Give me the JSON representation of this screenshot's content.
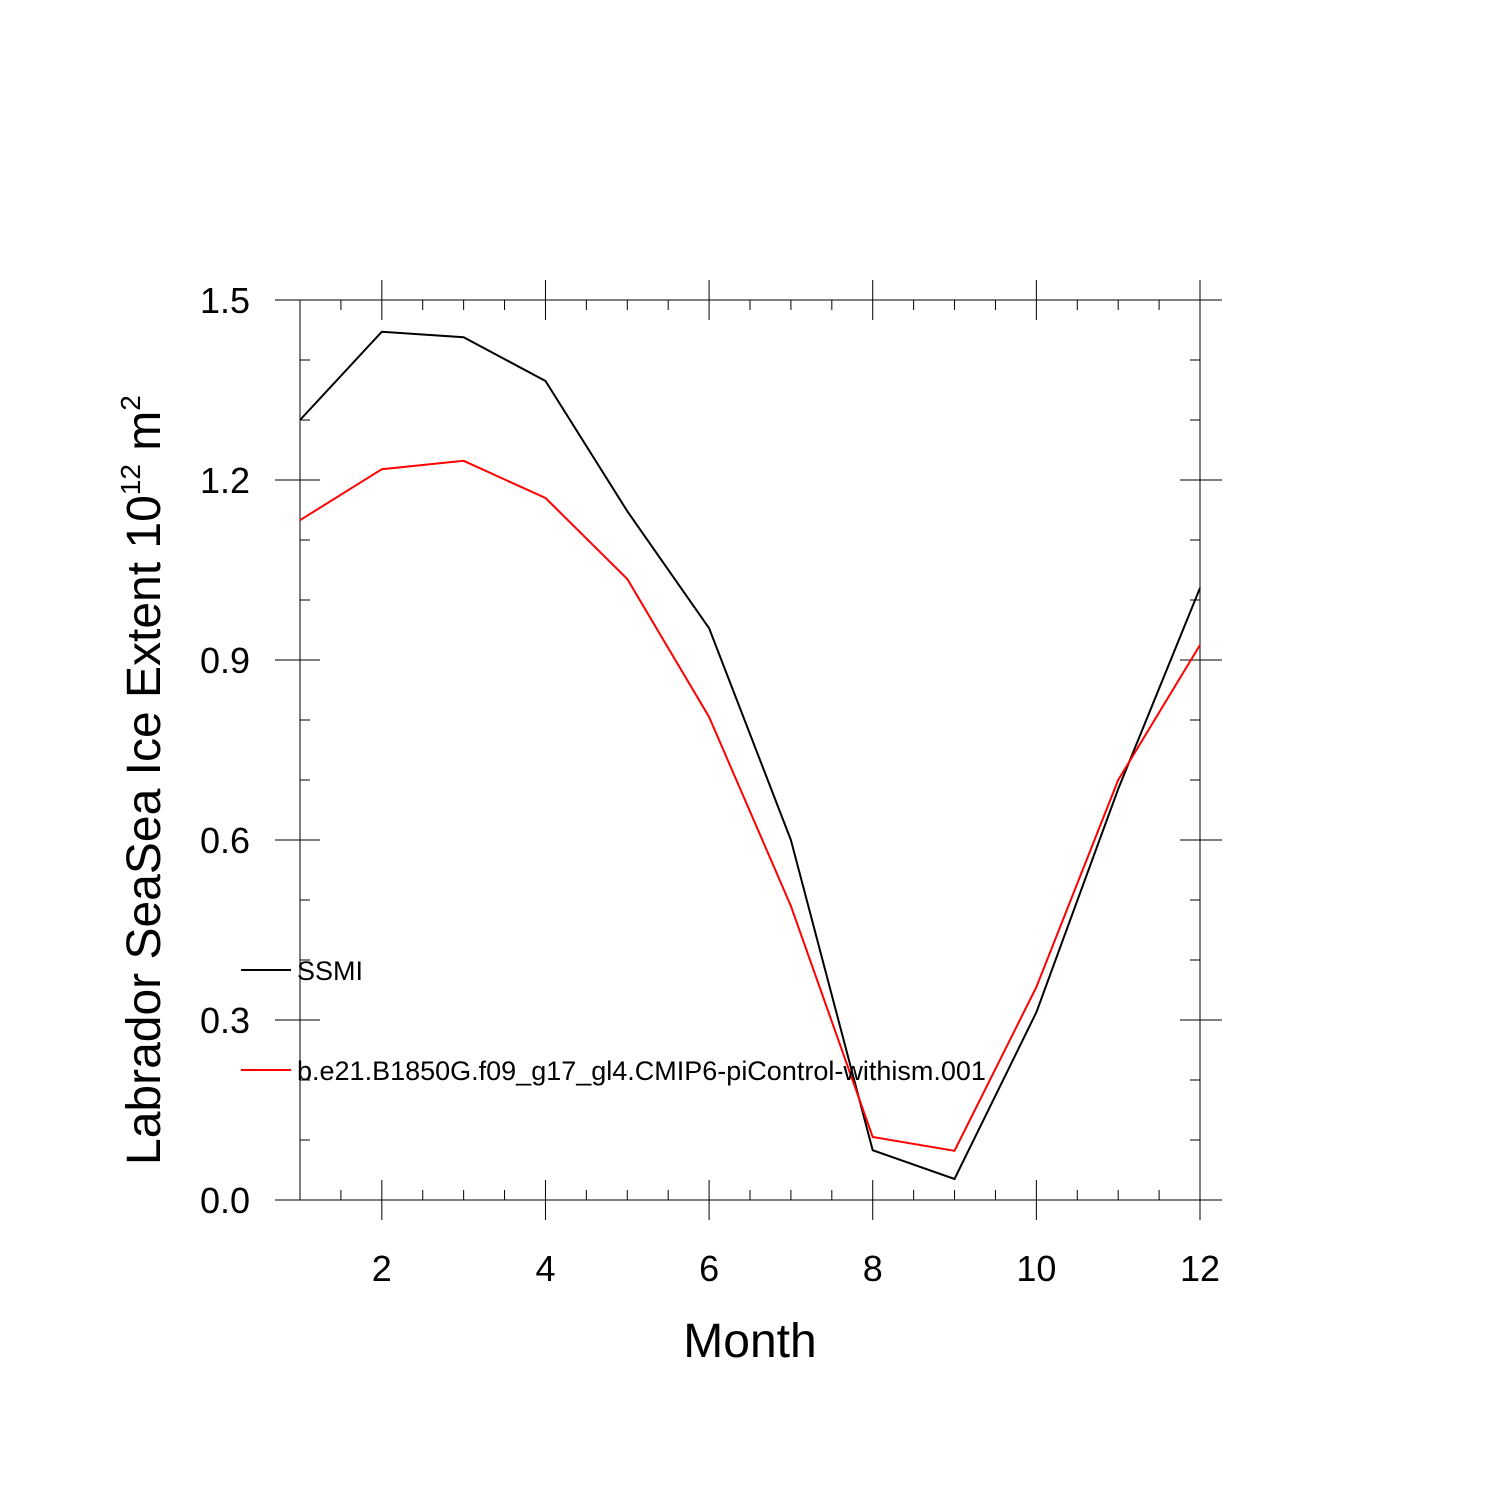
{
  "chart_data": {
    "type": "line",
    "title": "",
    "xlabel": "Month",
    "ylabel": {
      "main": "Labrador SeaSea Ice Extent 10",
      "superscript1": "12",
      "unit": " m",
      "superscript2": "2"
    },
    "xlim": [
      1,
      12
    ],
    "ylim": [
      0,
      1.5
    ],
    "xticks": [
      2,
      4,
      6,
      8,
      10,
      12
    ],
    "xtick_labels": [
      "2",
      "4",
      "6",
      "8",
      "10",
      "12"
    ],
    "yticks": [
      0,
      0.3,
      0.6,
      0.9,
      1.2,
      1.5
    ],
    "ytick_labels": [
      "0.0",
      "0.3",
      "0.6",
      "0.9",
      "1.2",
      "1.5"
    ],
    "grid": false,
    "legend_position": "inside-left",
    "x": [
      1,
      2,
      3,
      4,
      5,
      6,
      7,
      8,
      9,
      10,
      11,
      12
    ],
    "series": [
      {
        "name": "SSMI",
        "color": "#000000",
        "values": [
          1.3,
          1.447,
          1.438,
          1.365,
          1.148,
          0.953,
          0.6,
          0.083,
          0.035,
          0.313,
          0.685,
          1.02
        ]
      },
      {
        "name": "b.e21.B1850G.f09_g17_gl4.CMIP6-piControl-withism.001",
        "color": "#ff0000",
        "values": [
          1.133,
          1.218,
          1.232,
          1.17,
          1.035,
          0.805,
          0.49,
          0.105,
          0.082,
          0.355,
          0.7,
          0.925
        ]
      }
    ]
  }
}
